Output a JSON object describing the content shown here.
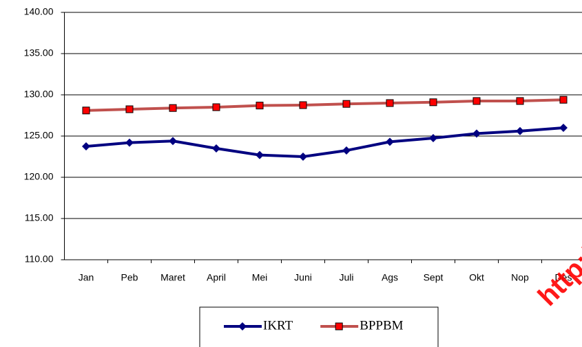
{
  "chart_data": {
    "type": "line",
    "categories": [
      "Jan",
      "Peb",
      "Maret",
      "April",
      "Mei",
      "Juni",
      "Juli",
      "Ags",
      "Sept",
      "Okt",
      "Nop",
      "Des"
    ],
    "series": [
      {
        "name": "IKRT",
        "color": "#000080",
        "marker": "diamond",
        "values": [
          123.75,
          124.2,
          124.4,
          123.5,
          122.7,
          122.5,
          123.25,
          124.3,
          124.75,
          125.3,
          125.6,
          126.0
        ]
      },
      {
        "name": "BPPBM",
        "color": "#c0504d",
        "marker": "square",
        "marker_color": "#ff0000",
        "values": [
          128.1,
          128.25,
          128.4,
          128.5,
          128.7,
          128.75,
          128.9,
          129.0,
          129.1,
          129.25,
          129.25,
          129.4
        ]
      }
    ],
    "ylim": [
      110,
      140
    ],
    "yticks": [
      {
        "value": 110,
        "label": "110.00"
      },
      {
        "value": 115,
        "label": "115.00"
      },
      {
        "value": 120,
        "label": "120.00"
      },
      {
        "value": 125,
        "label": "125.00"
      },
      {
        "value": 130,
        "label": "130.00"
      },
      {
        "value": 135,
        "label": "135.00"
      },
      {
        "value": 140,
        "label": "140.00"
      }
    ],
    "grid": true,
    "legend": "bottom",
    "watermark": "http://"
  }
}
